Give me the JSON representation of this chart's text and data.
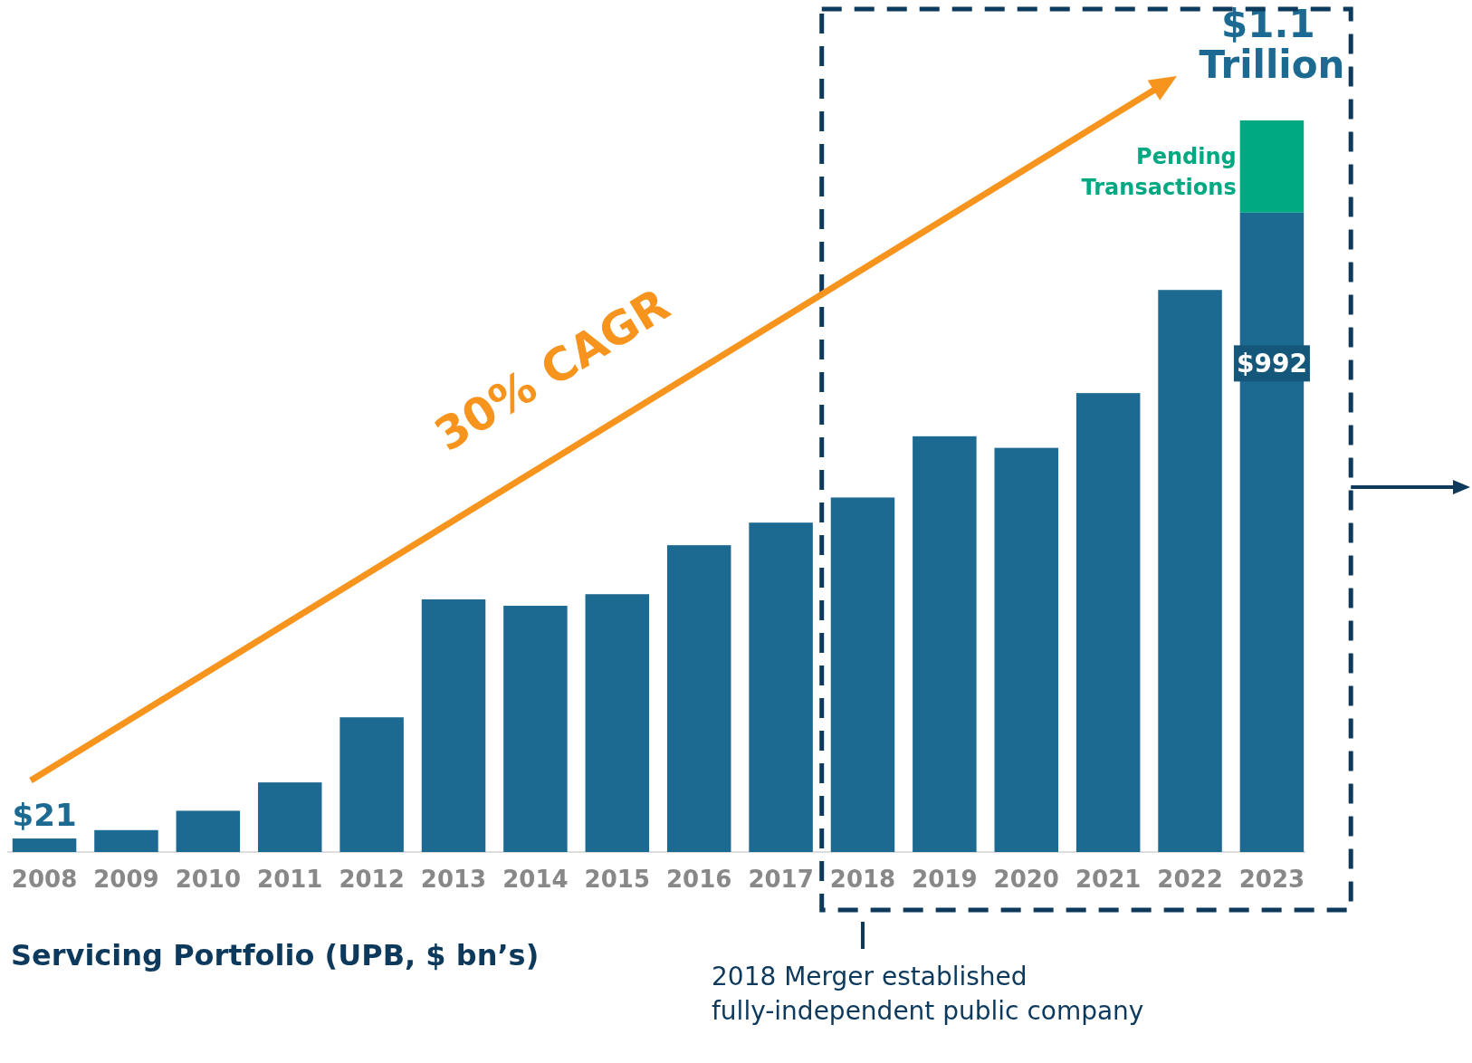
{
  "chart_data": {
    "type": "bar",
    "stacked": true,
    "tick_labels": "x",
    "xlabel": "Servicing Portfolio (UPB, $ bn’s)",
    "categories": [
      "2008",
      "2009",
      "2010",
      "2011",
      "2012",
      "2013",
      "2014",
      "2015",
      "2016",
      "2017",
      "2018",
      "2019",
      "2020",
      "2021",
      "2022",
      "2023"
    ],
    "series": [
      {
        "color": "#1c6a91",
        "values": [
          21,
          34,
          64,
          108,
          209,
          392,
          382,
          400,
          476,
          511,
          550,
          645,
          627,
          712,
          872,
          992
        ],
        "value_labels": [
          "$21",
          null,
          null,
          null,
          null,
          null,
          null,
          null,
          null,
          null,
          null,
          null,
          null,
          null,
          null,
          "$992"
        ]
      },
      {
        "name": "Pending Transactions",
        "color": "#00a982",
        "values": [
          null,
          null,
          null,
          null,
          null,
          null,
          null,
          null,
          null,
          null,
          null,
          null,
          null,
          null,
          null,
          143
        ]
      }
    ],
    "annotations": [
      {
        "text": "$1.1 Trillion",
        "x": "2023",
        "y": 1135
      },
      "30% CAGR",
      "2018 Merger established fully-independent public company"
    ]
  }
}
